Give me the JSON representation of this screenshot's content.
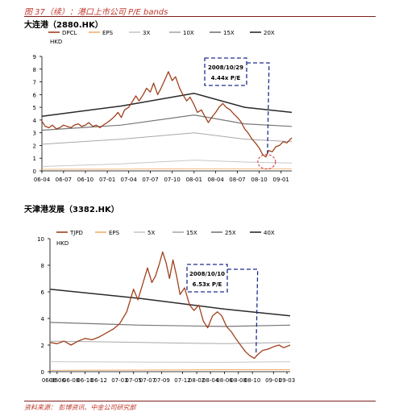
{
  "page_title": "图 37（续）：港口上市公司 P/E bands",
  "footer": "资料来源：  彭博资讯、中金公司研究部",
  "colors": {
    "price": "#a0401c",
    "eps": "#f0b070",
    "band_light": "#c8c8c8",
    "band_mid": "#a8a8a8",
    "band_dark": "#777777",
    "band_darkest": "#2a2a2a",
    "annotation": "#1f2d8f",
    "highlight": "#d03030",
    "title_red": "#c0392b"
  },
  "chart_data": [
    {
      "type": "line",
      "title": "大连港（2880.HK）",
      "ylabel": "HKD",
      "ylim": [
        0,
        9
      ],
      "yticks": [
        "0",
        "1",
        "2",
        "3",
        "4",
        "5",
        "6",
        "7",
        "8",
        "9"
      ],
      "x_ticks": [
        "06-04",
        "06-07",
        "06-10",
        "07-01",
        "07-04",
        "07-07",
        "07-10",
        "08-01",
        "08-04",
        "08-07",
        "08-10",
        "09-01"
      ],
      "x_start": "2006-04-01",
      "x_end": "2009-02-15",
      "legend": [
        "DPCL",
        "EPS",
        "3X",
        "10X",
        "15X",
        "20X"
      ],
      "series": [
        {
          "name": "DPCL",
          "role": "price",
          "values": [
            [
              "2006-04-01",
              3.9
            ],
            [
              "2006-04-15",
              3.5
            ],
            [
              "2006-05-01",
              3.4
            ],
            [
              "2006-05-15",
              3.6
            ],
            [
              "2006-06-01",
              3.3
            ],
            [
              "2006-06-15",
              3.4
            ],
            [
              "2006-07-01",
              3.6
            ],
            [
              "2006-07-15",
              3.5
            ],
            [
              "2006-08-01",
              3.4
            ],
            [
              "2006-08-15",
              3.6
            ],
            [
              "2006-09-01",
              3.7
            ],
            [
              "2006-09-15",
              3.5
            ],
            [
              "2006-10-01",
              3.6
            ],
            [
              "2006-10-15",
              3.8
            ],
            [
              "2006-11-01",
              3.5
            ],
            [
              "2006-11-15",
              3.6
            ],
            [
              "2006-12-01",
              3.4
            ],
            [
              "2006-12-15",
              3.6
            ],
            [
              "2007-01-01",
              3.8
            ],
            [
              "2007-01-15",
              4.0
            ],
            [
              "2007-02-01",
              4.3
            ],
            [
              "2007-02-15",
              4.6
            ],
            [
              "2007-03-01",
              4.2
            ],
            [
              "2007-03-15",
              4.8
            ],
            [
              "2007-04-01",
              5.0
            ],
            [
              "2007-04-15",
              5.4
            ],
            [
              "2007-05-01",
              5.9
            ],
            [
              "2007-05-15",
              5.5
            ],
            [
              "2007-06-01",
              6.0
            ],
            [
              "2007-06-15",
              6.5
            ],
            [
              "2007-07-01",
              6.2
            ],
            [
              "2007-07-15",
              6.9
            ],
            [
              "2007-08-01",
              6.0
            ],
            [
              "2007-08-15",
              6.5
            ],
            [
              "2007-09-01",
              7.2
            ],
            [
              "2007-09-15",
              7.8
            ],
            [
              "2007-10-01",
              7.1
            ],
            [
              "2007-10-15",
              7.4
            ],
            [
              "2007-11-01",
              6.5
            ],
            [
              "2007-11-15",
              6.0
            ],
            [
              "2007-12-01",
              5.5
            ],
            [
              "2007-12-15",
              5.8
            ],
            [
              "2008-01-01",
              5.2
            ],
            [
              "2008-01-15",
              4.6
            ],
            [
              "2008-02-01",
              4.8
            ],
            [
              "2008-02-15",
              4.3
            ],
            [
              "2008-03-01",
              3.8
            ],
            [
              "2008-03-15",
              4.2
            ],
            [
              "2008-04-01",
              4.6
            ],
            [
              "2008-04-15",
              5.0
            ],
            [
              "2008-05-01",
              5.3
            ],
            [
              "2008-05-15",
              5.0
            ],
            [
              "2008-06-01",
              4.8
            ],
            [
              "2008-06-15",
              4.5
            ],
            [
              "2008-07-01",
              4.2
            ],
            [
              "2008-07-15",
              3.9
            ],
            [
              "2008-08-01",
              3.3
            ],
            [
              "2008-08-15",
              3.0
            ],
            [
              "2008-09-01",
              2.5
            ],
            [
              "2008-09-15",
              2.2
            ],
            [
              "2008-10-01",
              1.8
            ],
            [
              "2008-10-15",
              1.3
            ],
            [
              "2008-10-29",
              1.1
            ],
            [
              "2008-11-10",
              1.6
            ],
            [
              "2008-11-25",
              1.5
            ],
            [
              "2008-12-10",
              1.9
            ],
            [
              "2008-12-25",
              2.0
            ],
            [
              "2009-01-10",
              2.3
            ],
            [
              "2009-01-25",
              2.2
            ],
            [
              "2009-02-15",
              2.6
            ]
          ]
        },
        {
          "name": "EPS",
          "role": "eps",
          "values": [
            [
              "2006-04-01",
              0.12
            ],
            [
              "2007-03-01",
              0.14
            ],
            [
              "2008-01-01",
              0.17
            ],
            [
              "2009-02-15",
              0.17
            ]
          ]
        },
        {
          "name": "3X",
          "role": "band_light",
          "values": [
            [
              "2006-04-01",
              0.35
            ],
            [
              "2007-03-01",
              0.55
            ],
            [
              "2008-01-01",
              0.85
            ],
            [
              "2008-08-01",
              0.7
            ],
            [
              "2009-02-15",
              0.62
            ]
          ]
        },
        {
          "name": "10X",
          "role": "band_mid",
          "values": [
            [
              "2006-04-01",
              2.1
            ],
            [
              "2007-03-01",
              2.5
            ],
            [
              "2008-01-01",
              3.0
            ],
            [
              "2008-08-01",
              2.5
            ],
            [
              "2009-02-15",
              2.3
            ]
          ]
        },
        {
          "name": "15X",
          "role": "band_dark",
          "values": [
            [
              "2006-04-01",
              3.2
            ],
            [
              "2007-03-01",
              3.6
            ],
            [
              "2008-01-01",
              4.4
            ],
            [
              "2008-08-01",
              3.7
            ],
            [
              "2009-02-15",
              3.5
            ]
          ]
        },
        {
          "name": "20X",
          "role": "band_darkest",
          "values": [
            [
              "2006-04-01",
              4.3
            ],
            [
              "2007-03-01",
              5.1
            ],
            [
              "2008-01-01",
              6.1
            ],
            [
              "2008-08-01",
              5.0
            ],
            [
              "2009-02-15",
              4.6
            ]
          ]
        }
      ],
      "annotation": {
        "date": "2008/10/29",
        "label": "4.44x P/E",
        "point_date": "2008-10-29"
      }
    },
    {
      "type": "line",
      "title": "天津港发展（3382.HK）",
      "ylabel": "HKD",
      "ylim": [
        0,
        10
      ],
      "yticks": [
        "0",
        "2",
        "4",
        "6",
        "8",
        "10"
      ],
      "x_ticks": [
        "06-05",
        "06-06",
        "06-08",
        "06-10",
        "06-12",
        "07-03",
        "07-05",
        "07-07",
        "07-09",
        "07-12",
        "08-02",
        "08-04",
        "08-06",
        "08-08",
        "08-10",
        "09-01",
        "09-03"
      ],
      "x_start": "2006-05-01",
      "x_end": "2009-03-15",
      "legend": [
        "TJPD",
        "EPS",
        "5X",
        "15X",
        "25X",
        "40X"
      ],
      "series": [
        {
          "name": "TJPD",
          "role": "price",
          "values": [
            [
              "2006-05-01",
              2.2
            ],
            [
              "2006-06-01",
              2.1
            ],
            [
              "2006-07-01",
              2.3
            ],
            [
              "2006-08-01",
              2.0
            ],
            [
              "2006-09-01",
              2.3
            ],
            [
              "2006-10-01",
              2.5
            ],
            [
              "2006-11-01",
              2.4
            ],
            [
              "2006-12-01",
              2.6
            ],
            [
              "2007-01-01",
              2.9
            ],
            [
              "2007-02-01",
              3.2
            ],
            [
              "2007-03-01",
              3.6
            ],
            [
              "2007-04-01",
              4.5
            ],
            [
              "2007-05-01",
              6.2
            ],
            [
              "2007-05-20",
              5.4
            ],
            [
              "2007-06-10",
              6.6
            ],
            [
              "2007-07-01",
              7.8
            ],
            [
              "2007-07-20",
              6.7
            ],
            [
              "2007-08-05",
              7.2
            ],
            [
              "2007-08-20",
              8.0
            ],
            [
              "2007-09-05",
              9.0
            ],
            [
              "2007-09-20",
              8.2
            ],
            [
              "2007-10-05",
              7.0
            ],
            [
              "2007-10-20",
              8.4
            ],
            [
              "2007-11-05",
              7.2
            ],
            [
              "2007-11-20",
              5.8
            ],
            [
              "2007-12-10",
              6.3
            ],
            [
              "2008-01-01",
              5.0
            ],
            [
              "2008-01-20",
              4.6
            ],
            [
              "2008-02-10",
              5.0
            ],
            [
              "2008-03-01",
              3.8
            ],
            [
              "2008-03-20",
              3.3
            ],
            [
              "2008-04-10",
              4.2
            ],
            [
              "2008-05-01",
              4.5
            ],
            [
              "2008-05-20",
              4.2
            ],
            [
              "2008-06-10",
              3.4
            ],
            [
              "2008-07-01",
              3.0
            ],
            [
              "2008-07-20",
              2.5
            ],
            [
              "2008-08-10",
              2.0
            ],
            [
              "2008-09-01",
              1.5
            ],
            [
              "2008-09-20",
              1.2
            ],
            [
              "2008-10-10",
              1.0
            ],
            [
              "2008-10-25",
              1.3
            ],
            [
              "2008-11-15",
              1.6
            ],
            [
              "2008-12-10",
              1.7
            ],
            [
              "2009-01-05",
              1.9
            ],
            [
              "2009-01-25",
              2.0
            ],
            [
              "2009-02-15",
              1.8
            ],
            [
              "2009-03-15",
              2.0
            ]
          ]
        },
        {
          "name": "EPS",
          "role": "eps",
          "values": [
            [
              "2006-05-01",
              0.1
            ],
            [
              "2007-06-01",
              0.12
            ],
            [
              "2008-06-01",
              0.15
            ],
            [
              "2009-03-15",
              0.15
            ]
          ]
        },
        {
          "name": "5X",
          "role": "band_light",
          "values": [
            [
              "2006-05-01",
              0.75
            ],
            [
              "2007-06-01",
              0.72
            ],
            [
              "2008-06-01",
              0.7
            ],
            [
              "2009-03-15",
              0.75
            ]
          ]
        },
        {
          "name": "15X",
          "role": "band_mid",
          "values": [
            [
              "2006-05-01",
              2.3
            ],
            [
              "2007-06-01",
              2.2
            ],
            [
              "2008-06-01",
              2.1
            ],
            [
              "2009-03-15",
              2.2
            ]
          ]
        },
        {
          "name": "25X",
          "role": "band_dark",
          "values": [
            [
              "2006-05-01",
              3.7
            ],
            [
              "2007-06-01",
              3.5
            ],
            [
              "2008-06-01",
              3.4
            ],
            [
              "2009-03-15",
              3.5
            ]
          ]
        },
        {
          "name": "40X",
          "role": "band_darkest",
          "values": [
            [
              "2006-05-01",
              6.2
            ],
            [
              "2007-06-01",
              5.5
            ],
            [
              "2008-06-01",
              4.7
            ],
            [
              "2009-03-15",
              4.2
            ]
          ]
        }
      ],
      "annotation": {
        "date": "2008/10/10",
        "label": "6.53x P/E",
        "point_date": "2008-10-10"
      }
    }
  ]
}
